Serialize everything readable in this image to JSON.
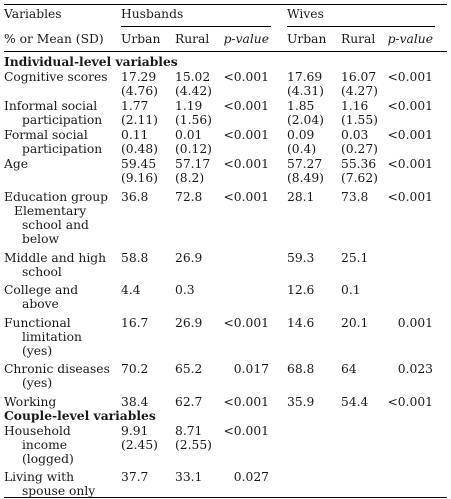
{
  "header": {
    "variables": "Variables",
    "husbands": "Husbands",
    "wives": "Wives",
    "row_label": "% or Mean (SD)",
    "urban": "Urban",
    "rural": "Rural",
    "pvalue": "p-value"
  },
  "sections": {
    "individual": "Individual-level variables",
    "couple": "Couple-level variables"
  },
  "rows": [
    {
      "label": [
        "Cognitive scores"
      ],
      "hu": [
        "17.29",
        "(4.76)"
      ],
      "hr": [
        "15.02",
        "(4.42)"
      ],
      "hp": "<0.001",
      "wu": [
        "17.69",
        "(4.31)"
      ],
      "wr": [
        "16.07",
        "(4.27)"
      ],
      "wp": "<0.001"
    },
    {
      "label": [
        "Informal social",
        "participation"
      ],
      "hu": [
        "1.77",
        "(2.11)"
      ],
      "hr": [
        "1.19",
        "(1.56)"
      ],
      "hp": "<0.001",
      "wu": [
        "1.85",
        "(2.04)"
      ],
      "wr": [
        "1.16",
        "(1.55)"
      ],
      "wp": "<0.001"
    },
    {
      "label": [
        "Formal social",
        "participation"
      ],
      "hu": [
        "0.11",
        "(0.48)"
      ],
      "hr": [
        "0.01",
        "(0.12)"
      ],
      "hp": "<0.001",
      "wu": [
        "0.09",
        "(0.4)"
      ],
      "wr": [
        "0.03",
        "(0.27)"
      ],
      "wp": "<0.001"
    },
    {
      "label": [
        "Age"
      ],
      "hu": [
        "59.45",
        "(9.16)"
      ],
      "hr": [
        "57.17",
        "(8.2)"
      ],
      "hp": "<0.001",
      "wu": [
        "57.27",
        "(8.49)"
      ],
      "wr": [
        "55.36",
        "(7.62)"
      ],
      "wp": "<0.001"
    },
    {
      "label": [
        "Education group",
        "Elementary",
        "school and",
        "below"
      ],
      "hu": [
        "36.8"
      ],
      "hr": [
        "72.8"
      ],
      "hp": "<0.001",
      "wu": [
        "28.1"
      ],
      "wr": [
        "73.8"
      ],
      "wp": "<0.001"
    },
    {
      "label": [
        "Middle and high",
        "school"
      ],
      "hu": [
        "58.8"
      ],
      "hr": [
        "26.9"
      ],
      "hp": "",
      "wu": [
        "59.3"
      ],
      "wr": [
        "25.1"
      ],
      "wp": ""
    },
    {
      "label": [
        "College and",
        "above"
      ],
      "hu": [
        "4.4"
      ],
      "hr": [
        "0.3"
      ],
      "hp": "",
      "wu": [
        "12.6"
      ],
      "wr": [
        "0.1"
      ],
      "wp": ""
    },
    {
      "label": [
        "Functional",
        "limitation",
        "(yes)"
      ],
      "hu": [
        "16.7"
      ],
      "hr": [
        "26.9"
      ],
      "hp": "<0.001",
      "wu": [
        "14.6"
      ],
      "wr": [
        "20.1"
      ],
      "wp": "0.001"
    },
    {
      "label": [
        "Chronic diseases",
        "(yes)"
      ],
      "hu": [
        "70.2"
      ],
      "hr": [
        "65.2"
      ],
      "hp": "0.017",
      "wu": [
        "68.8"
      ],
      "wr": [
        "64"
      ],
      "wp": "0.023"
    },
    {
      "label": [
        "Working"
      ],
      "hu": [
        "38.4"
      ],
      "hr": [
        "62.7"
      ],
      "hp": "<0.001",
      "wu": [
        "35.9"
      ],
      "wr": [
        "54.4"
      ],
      "wp": "<0.001"
    },
    {
      "label": [
        "Household",
        "income",
        "(logged)"
      ],
      "hu": [
        "9.91",
        "(2.45)"
      ],
      "hr": [
        "8.71",
        "(2.55)"
      ],
      "hp": "<0.001",
      "wu": [],
      "wr": [],
      "wp": ""
    },
    {
      "label": [
        "Living with",
        "spouse only"
      ],
      "hu": [
        "37.7"
      ],
      "hr": [
        "33.1"
      ],
      "hp": "0.027",
      "wu": [],
      "wr": [],
      "wp": ""
    }
  ]
}
